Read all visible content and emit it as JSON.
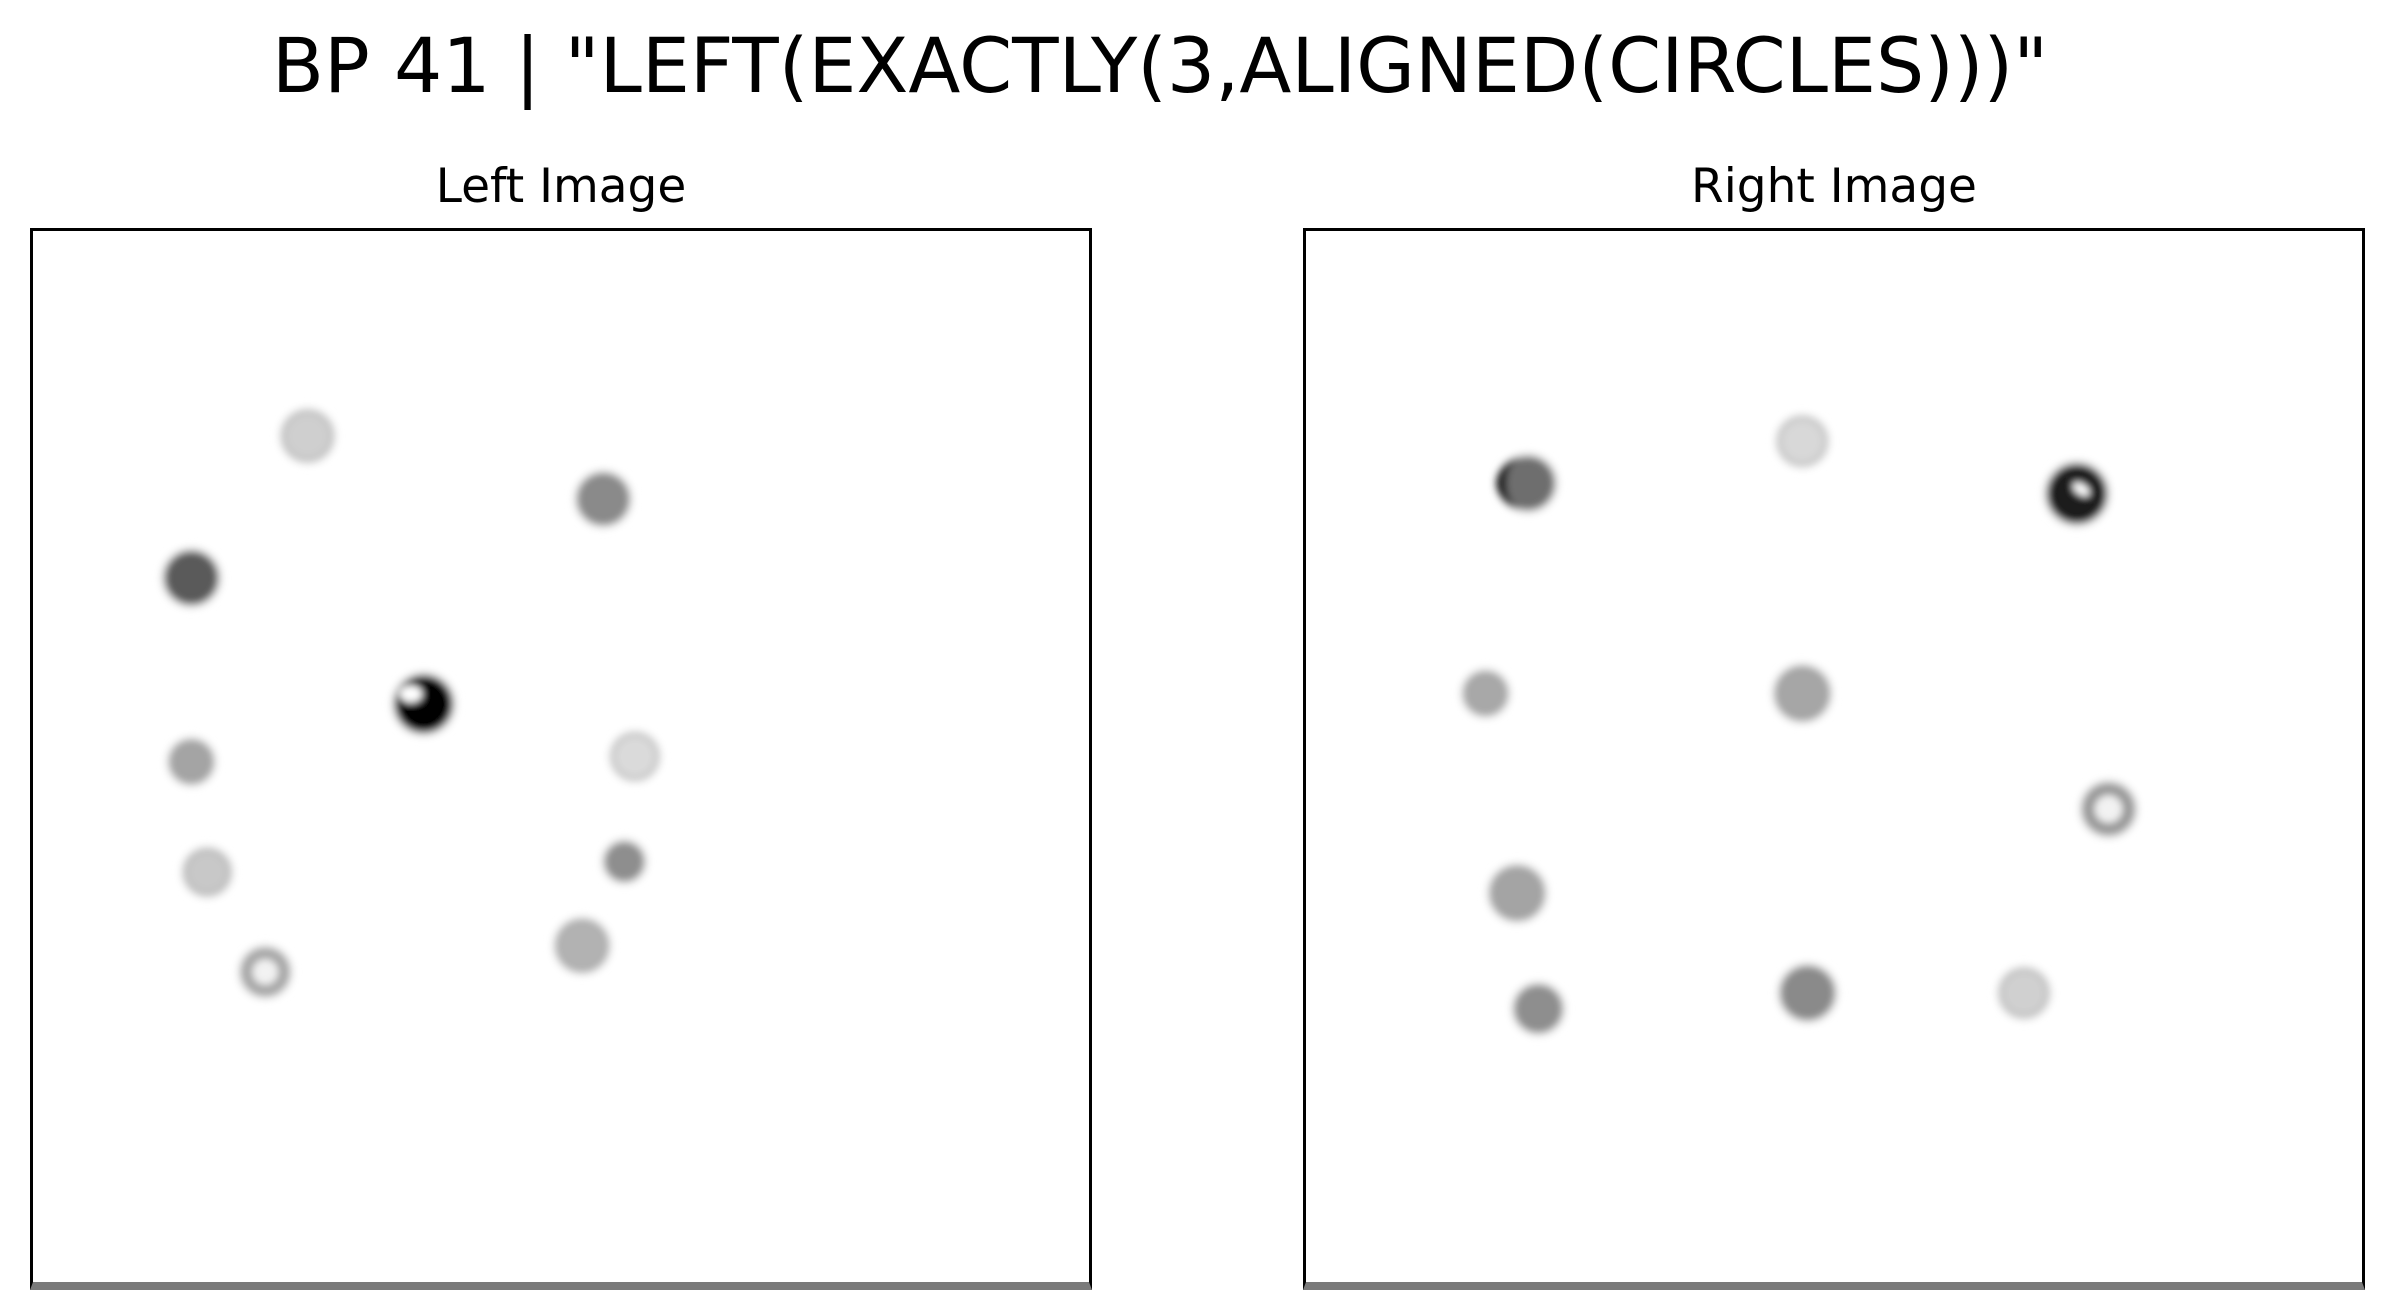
{
  "title": "BP 41 | \"LEFT(EXACTLY(3,ALIGNED(CIRCLES)))\"",
  "panels": {
    "left": {
      "title": "Left Image",
      "circles": [
        {
          "x": 26,
          "y": 19.5,
          "r": 2.3,
          "fill": "#cfcfcf"
        },
        {
          "x": 15,
          "y": 33,
          "r": 2.5,
          "fill": "#5a5a5a"
        },
        {
          "x": 54,
          "y": 25.5,
          "r": 2.4,
          "fill": "#8a8a8a"
        },
        {
          "x": 37,
          "y": 45,
          "r": 2.7,
          "fill": "#000000",
          "highlight": true
        },
        {
          "x": 15,
          "y": 50.5,
          "r": 2.0,
          "fill": "#a4a4a4"
        },
        {
          "x": 57,
          "y": 50,
          "r": 2.1,
          "fill": "#dadada"
        },
        {
          "x": 16.5,
          "y": 61,
          "r": 2.1,
          "fill": "#c8c8c8"
        },
        {
          "x": 56,
          "y": 60,
          "r": 1.8,
          "fill": "#8e8e8e"
        },
        {
          "x": 22,
          "y": 70.5,
          "r": 2.2,
          "fill": "#a8a8a8",
          "ring": true
        },
        {
          "x": 52,
          "y": 68,
          "r": 2.4,
          "fill": "#b2b2b2"
        }
      ]
    },
    "right": {
      "title": "Right Image",
      "circles": [
        {
          "x": 21,
          "y": 24,
          "r": 2.5,
          "fill": "#6e6e6e",
          "dark_edge": true
        },
        {
          "x": 47,
          "y": 20,
          "r": 2.2,
          "fill": "#d8d8d8"
        },
        {
          "x": 73,
          "y": 25,
          "r": 2.8,
          "fill": "#1c1c1c",
          "highlight": true
        },
        {
          "x": 17,
          "y": 44,
          "r": 2.0,
          "fill": "#a8a8a8"
        },
        {
          "x": 47,
          "y": 44,
          "r": 2.5,
          "fill": "#a6a6a6"
        },
        {
          "x": 76,
          "y": 55,
          "r": 2.4,
          "fill": "#9a9a9a",
          "ring": true
        },
        {
          "x": 20,
          "y": 63,
          "r": 2.5,
          "fill": "#a4a4a4"
        },
        {
          "x": 22,
          "y": 74,
          "r": 2.2,
          "fill": "#8e8e8e"
        },
        {
          "x": 47.5,
          "y": 72.5,
          "r": 2.5,
          "fill": "#8a8a8a"
        },
        {
          "x": 68,
          "y": 72.5,
          "r": 2.2,
          "fill": "#d0d0d0"
        }
      ]
    }
  }
}
